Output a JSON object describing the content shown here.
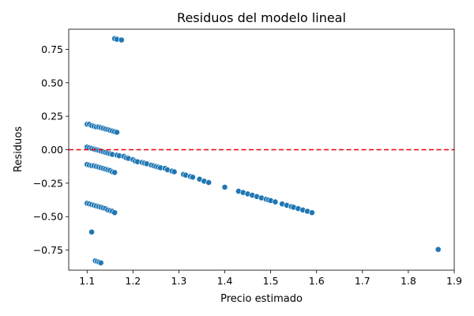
{
  "chart_data": {
    "type": "scatter",
    "title": "Residuos del modelo lineal",
    "xlabel": "Precio estimado",
    "ylabel": "Residuos",
    "xlim": [
      1.06,
      1.9
    ],
    "ylim": [
      -0.9,
      0.9
    ],
    "x_ticks": [
      1.1,
      1.2,
      1.3,
      1.4,
      1.5,
      1.6,
      1.7,
      1.8,
      1.9
    ],
    "x_tick_labels": [
      "1.1",
      "1.2",
      "1.3",
      "1.4",
      "1.5",
      "1.6",
      "1.7",
      "1.8",
      "1.9"
    ],
    "y_ticks": [
      0.75,
      0.5,
      0.25,
      0.0,
      -0.25,
      -0.5,
      -0.75
    ],
    "y_tick_labels": [
      "0.75",
      "0.50",
      "0.25",
      "0.00",
      "−0.25",
      "−0.50",
      "−0.75"
    ],
    "grid": false,
    "reference_line": {
      "y": 0.0,
      "style": "dashed",
      "color": "#e8000b"
    },
    "point_color": "#1f77b4",
    "points": [
      [
        1.16,
        0.83
      ],
      [
        1.165,
        0.825
      ],
      [
        1.175,
        0.82
      ],
      [
        1.1,
        0.19
      ],
      [
        1.105,
        0.19
      ],
      [
        1.11,
        0.18
      ],
      [
        1.115,
        0.175
      ],
      [
        1.12,
        0.17
      ],
      [
        1.125,
        0.17
      ],
      [
        1.13,
        0.165
      ],
      [
        1.135,
        0.16
      ],
      [
        1.14,
        0.155
      ],
      [
        1.145,
        0.15
      ],
      [
        1.15,
        0.145
      ],
      [
        1.155,
        0.14
      ],
      [
        1.16,
        0.135
      ],
      [
        1.165,
        0.13
      ],
      [
        1.1,
        0.02
      ],
      [
        1.105,
        0.015
      ],
      [
        1.11,
        0.01
      ],
      [
        1.115,
        0.005
      ],
      [
        1.12,
        0.0
      ],
      [
        1.125,
        -0.005
      ],
      [
        1.13,
        -0.01
      ],
      [
        1.135,
        -0.015
      ],
      [
        1.14,
        -0.02
      ],
      [
        1.145,
        -0.025
      ],
      [
        1.15,
        -0.03
      ],
      [
        1.155,
        -0.035
      ],
      [
        1.165,
        -0.04
      ],
      [
        1.17,
        -0.045
      ],
      [
        1.18,
        -0.05
      ],
      [
        1.185,
        -0.06
      ],
      [
        1.19,
        -0.065
      ],
      [
        1.2,
        -0.075
      ],
      [
        1.205,
        -0.085
      ],
      [
        1.21,
        -0.09
      ],
      [
        1.22,
        -0.095
      ],
      [
        1.225,
        -0.1
      ],
      [
        1.23,
        -0.105
      ],
      [
        1.24,
        -0.115
      ],
      [
        1.245,
        -0.12
      ],
      [
        1.25,
        -0.125
      ],
      [
        1.255,
        -0.13
      ],
      [
        1.26,
        -0.135
      ],
      [
        1.27,
        -0.14
      ],
      [
        1.275,
        -0.15
      ],
      [
        1.285,
        -0.16
      ],
      [
        1.29,
        -0.165
      ],
      [
        1.31,
        -0.185
      ],
      [
        1.315,
        -0.19
      ],
      [
        1.325,
        -0.2
      ],
      [
        1.33,
        -0.205
      ],
      [
        1.345,
        -0.22
      ],
      [
        1.355,
        -0.235
      ],
      [
        1.365,
        -0.245
      ],
      [
        1.4,
        -0.28
      ],
      [
        1.43,
        -0.31
      ],
      [
        1.44,
        -0.32
      ],
      [
        1.45,
        -0.33
      ],
      [
        1.46,
        -0.34
      ],
      [
        1.47,
        -0.35
      ],
      [
        1.48,
        -0.36
      ],
      [
        1.49,
        -0.37
      ],
      [
        1.495,
        -0.375
      ],
      [
        1.5,
        -0.38
      ],
      [
        1.51,
        -0.39
      ],
      [
        1.525,
        -0.405
      ],
      [
        1.535,
        -0.415
      ],
      [
        1.545,
        -0.425
      ],
      [
        1.55,
        -0.43
      ],
      [
        1.56,
        -0.44
      ],
      [
        1.57,
        -0.45
      ],
      [
        1.58,
        -0.46
      ],
      [
        1.59,
        -0.47
      ],
      [
        1.1,
        -0.11
      ],
      [
        1.105,
        -0.115
      ],
      [
        1.11,
        -0.12
      ],
      [
        1.115,
        -0.12
      ],
      [
        1.12,
        -0.125
      ],
      [
        1.125,
        -0.13
      ],
      [
        1.13,
        -0.135
      ],
      [
        1.135,
        -0.14
      ],
      [
        1.14,
        -0.145
      ],
      [
        1.145,
        -0.15
      ],
      [
        1.15,
        -0.155
      ],
      [
        1.155,
        -0.165
      ],
      [
        1.16,
        -0.17
      ],
      [
        1.1,
        -0.4
      ],
      [
        1.105,
        -0.405
      ],
      [
        1.11,
        -0.41
      ],
      [
        1.115,
        -0.415
      ],
      [
        1.12,
        -0.42
      ],
      [
        1.125,
        -0.425
      ],
      [
        1.13,
        -0.43
      ],
      [
        1.135,
        -0.435
      ],
      [
        1.14,
        -0.44
      ],
      [
        1.145,
        -0.45
      ],
      [
        1.15,
        -0.455
      ],
      [
        1.155,
        -0.46
      ],
      [
        1.16,
        -0.47
      ],
      [
        1.11,
        -0.615
      ],
      [
        1.118,
        -0.83
      ],
      [
        1.122,
        -0.835
      ],
      [
        1.126,
        -0.84
      ],
      [
        1.13,
        -0.845
      ],
      [
        1.865,
        -0.745
      ]
    ]
  }
}
